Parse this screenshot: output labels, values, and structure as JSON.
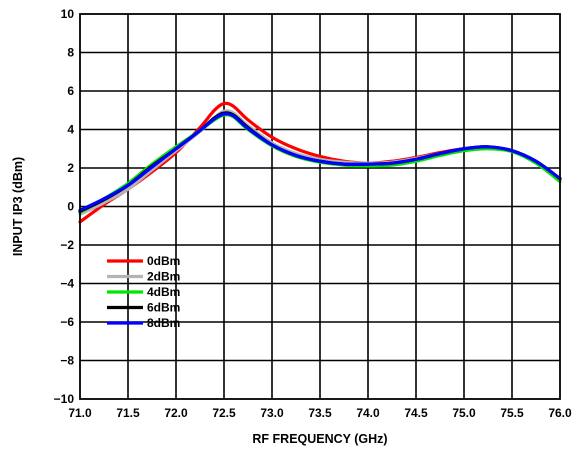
{
  "chart_data": {
    "type": "line",
    "xlabel": "RF FREQUENCY (GHz)",
    "ylabel": "INPUT IP3 (dBm)",
    "xlim": [
      71.0,
      76.0
    ],
    "ylim": [
      -10,
      10
    ],
    "x_ticks": [
      "71.0",
      "71.5",
      "72.0",
      "72.5",
      "73.0",
      "73.5",
      "74.0",
      "74.5",
      "75.0",
      "75.5",
      "76.0"
    ],
    "y_ticks": [
      "10",
      "8",
      "6",
      "4",
      "2",
      "0",
      "−2",
      "−4",
      "−6",
      "−8",
      "−10"
    ],
    "grid": true,
    "legend_position": "bottom-left",
    "x": [
      71.0,
      71.25,
      71.5,
      71.75,
      72.0,
      72.25,
      72.4,
      72.5,
      72.6,
      72.75,
      73.0,
      73.25,
      73.5,
      73.75,
      74.0,
      74.25,
      74.5,
      74.75,
      75.0,
      75.25,
      75.5,
      75.75,
      76.0
    ],
    "series": [
      {
        "name": "0dBm",
        "color": "#ff0000",
        "values": [
          -0.8,
          0.1,
          0.9,
          1.8,
          2.8,
          4.1,
          5.0,
          5.35,
          5.2,
          4.5,
          3.6,
          3.0,
          2.6,
          2.35,
          2.25,
          2.35,
          2.55,
          2.8,
          3.0,
          3.05,
          2.9,
          2.3,
          1.4
        ]
      },
      {
        "name": "2dBm",
        "color": "#b4b4b4",
        "values": [
          -0.4,
          0.2,
          0.9,
          1.9,
          2.9,
          3.9,
          4.6,
          4.95,
          4.85,
          4.2,
          3.3,
          2.75,
          2.45,
          2.3,
          2.25,
          2.3,
          2.5,
          2.75,
          2.95,
          3.05,
          2.9,
          2.3,
          1.4
        ]
      },
      {
        "name": "4dBm",
        "color": "#00e600",
        "values": [
          -0.3,
          0.4,
          1.2,
          2.2,
          3.1,
          3.95,
          4.5,
          4.75,
          4.65,
          4.0,
          3.15,
          2.6,
          2.3,
          2.15,
          2.1,
          2.15,
          2.35,
          2.65,
          2.9,
          3.0,
          2.85,
          2.25,
          1.3
        ]
      },
      {
        "name": "6dBm",
        "color": "#000000",
        "values": [
          -0.25,
          0.35,
          1.1,
          2.1,
          3.0,
          3.95,
          4.6,
          4.85,
          4.75,
          4.1,
          3.2,
          2.65,
          2.35,
          2.2,
          2.2,
          2.25,
          2.45,
          2.75,
          3.0,
          3.1,
          2.9,
          2.35,
          1.45
        ]
      },
      {
        "name": "8dBm",
        "color": "#0000ff",
        "values": [
          -0.2,
          0.4,
          1.1,
          2.05,
          3.0,
          3.95,
          4.55,
          4.8,
          4.7,
          4.05,
          3.2,
          2.65,
          2.35,
          2.2,
          2.2,
          2.25,
          2.45,
          2.75,
          3.0,
          3.1,
          2.9,
          2.35,
          1.45
        ]
      }
    ]
  }
}
